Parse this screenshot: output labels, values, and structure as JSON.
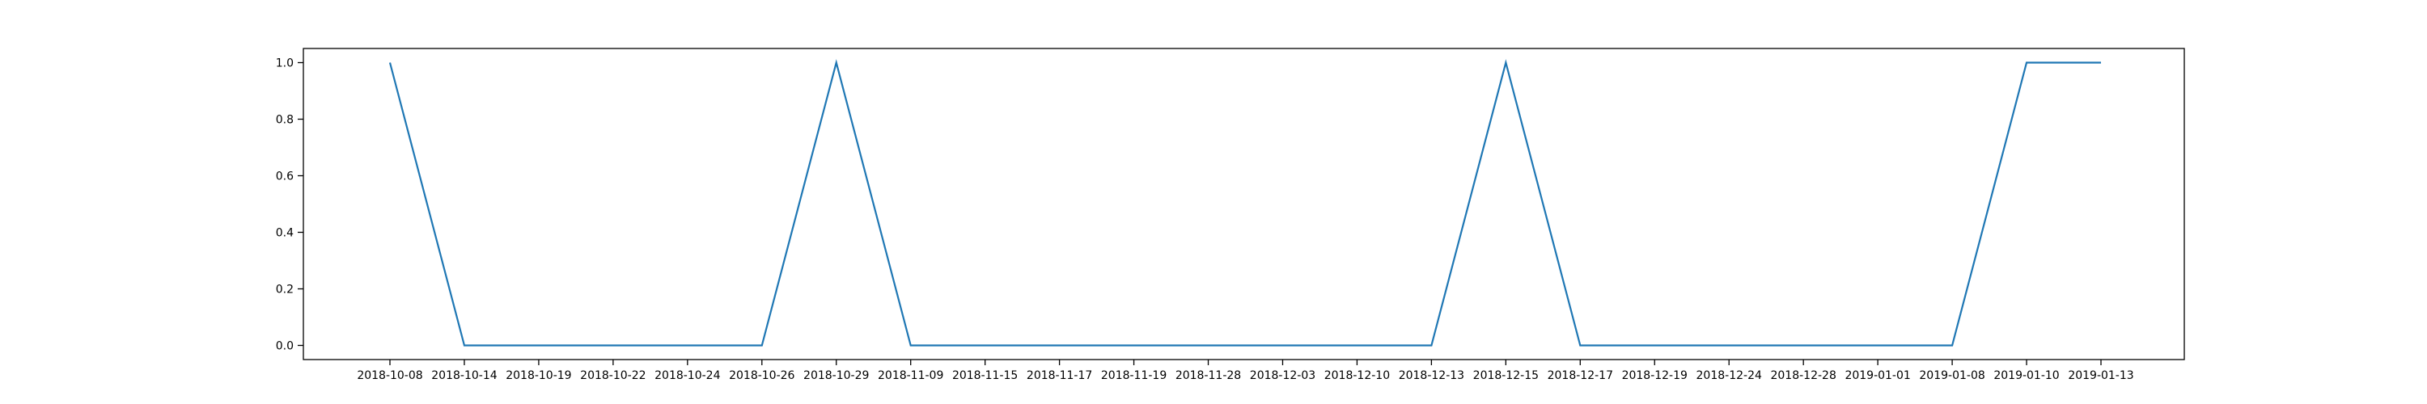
{
  "chart_data": {
    "type": "line",
    "title": "",
    "xlabel": "",
    "ylabel": "",
    "x": [
      "2018-10-08",
      "2018-10-14",
      "2018-10-19",
      "2018-10-22",
      "2018-10-24",
      "2018-10-26",
      "2018-10-29",
      "2018-11-09",
      "2018-11-15",
      "2018-11-17",
      "2018-11-19",
      "2018-11-28",
      "2018-12-03",
      "2018-12-10",
      "2018-12-13",
      "2018-12-15",
      "2018-12-17",
      "2018-12-19",
      "2018-12-24",
      "2018-12-28",
      "2019-01-01",
      "2019-01-08",
      "2019-01-10",
      "2019-01-13"
    ],
    "series": [
      {
        "values": [
          1,
          0,
          0,
          0,
          0,
          0,
          1,
          0,
          0,
          0,
          0,
          0,
          0,
          0,
          0,
          1,
          0,
          0,
          0,
          0,
          0,
          0,
          1,
          1
        ]
      }
    ],
    "ylim": [
      -0.05,
      1.05
    ],
    "yticks": [
      "0.0",
      "0.2",
      "0.4",
      "0.6",
      "0.8",
      "1.0"
    ],
    "ytick_values": [
      0,
      0.2,
      0.4,
      0.6,
      0.8,
      1.0
    ],
    "grid": false,
    "line_color": "#1f77b4"
  }
}
